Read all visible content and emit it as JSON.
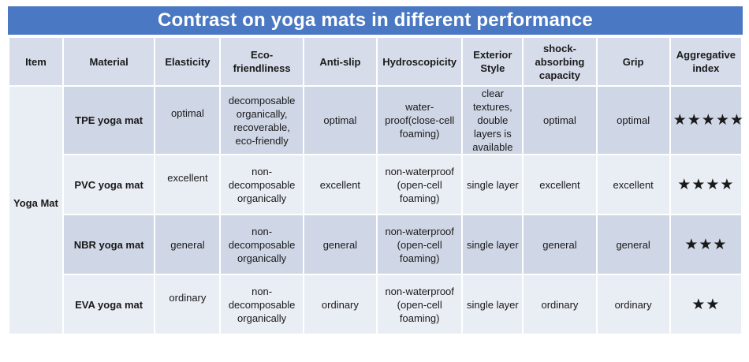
{
  "title": "Contrast on yoga mats in different performance",
  "columns": [
    "Item",
    "Material",
    "Elasticity",
    "Eco-friendliness",
    "Anti-slip",
    "Hydroscopicity",
    "Exterior Style",
    "shock-absorbing capacity",
    "Grip",
    "Aggregative index"
  ],
  "item": "Yoga Mat",
  "rows": [
    {
      "material": "TPE yoga mat",
      "elasticity": "optimal",
      "eco": "decomposable organically, recoverable, eco-friendly",
      "antislip": "optimal",
      "hydro": "water-proof(close-cell foaming)",
      "exterior": "clear textures, double layers is available",
      "shock": "optimal",
      "grip": "optimal",
      "index": "★★★★★"
    },
    {
      "material": "PVC yoga mat",
      "elasticity": "excellent",
      "eco": "non-decomposable organically",
      "antislip": "excellent",
      "hydro": "non-waterproof (open-cell foaming)",
      "exterior": "single layer",
      "shock": "excellent",
      "grip": "excellent",
      "index": "★★★★"
    },
    {
      "material": "NBR yoga mat",
      "elasticity": "general",
      "eco": "non-decomposable organically",
      "antislip": "general",
      "hydro": "non-waterproof (open-cell foaming)",
      "exterior": "single layer",
      "shock": "general",
      "grip": "general",
      "index": "★★★"
    },
    {
      "material": "EVA yoga mat",
      "elasticity": "ordinary",
      "eco": "non-decomposable organically",
      "antislip": "ordinary",
      "hydro": "non-waterproof (open-cell foaming)",
      "exterior": "single layer",
      "shock": "ordinary",
      "grip": "ordinary",
      "index": "★★"
    }
  ],
  "colors": {
    "title_bg": "#4a78c2",
    "header_bg": "#d6dcea",
    "row_dark": "#cfd6e6",
    "row_light": "#e9edf4"
  }
}
